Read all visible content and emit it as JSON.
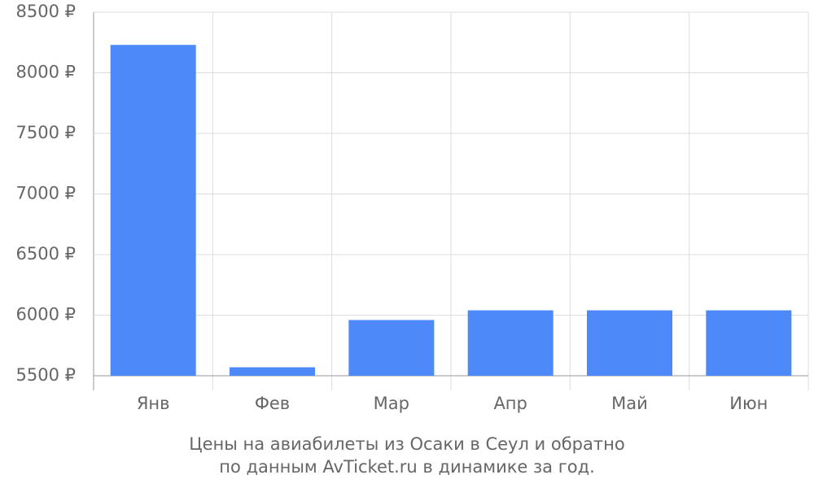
{
  "chart_data": {
    "type": "bar",
    "title": [
      "Цены на авиабилеты из Осаки в Сеул и обратно",
      "по данным AvTicket.ru в динамике за год."
    ],
    "categories": [
      "Янв",
      "Фев",
      "Мар",
      "Апр",
      "Май",
      "Июн"
    ],
    "values": [
      8230,
      5570,
      5960,
      6040,
      6040,
      6040
    ],
    "color": "#4d89f9",
    "ylim": [
      5500,
      8500
    ],
    "yticks": [
      {
        "value": 5500,
        "label": "5500 ₽"
      },
      {
        "value": 6000,
        "label": "6000 ₽"
      },
      {
        "value": 6500,
        "label": "6500 ₽"
      },
      {
        "value": 7000,
        "label": "7000 ₽"
      },
      {
        "value": 7500,
        "label": "7500 ₽"
      },
      {
        "value": 8000,
        "label": "8000 ₽"
      },
      {
        "value": 8500,
        "label": "8500 ₽"
      }
    ],
    "grid": true
  }
}
